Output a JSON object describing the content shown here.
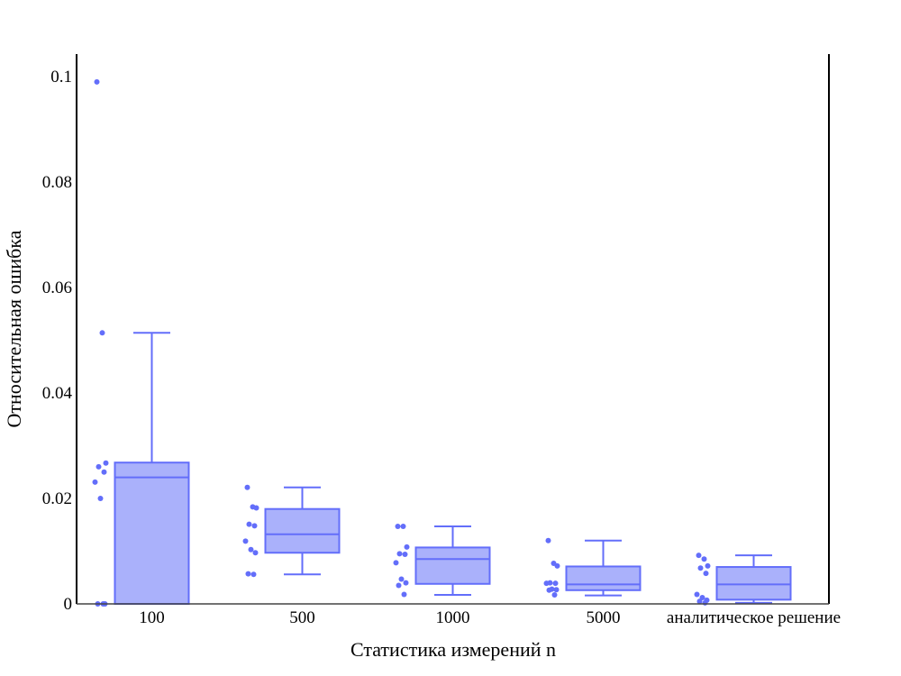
{
  "chart_data": {
    "type": "box",
    "title": "",
    "xlabel": "Статистика измерений n",
    "ylabel": "Относительная ошибка",
    "ylim": [
      0,
      0.1
    ],
    "yticks": [
      {
        "value": 0,
        "label": "0"
      },
      {
        "value": 0.02,
        "label": "0.02"
      },
      {
        "value": 0.04,
        "label": "0.04"
      },
      {
        "value": 0.06,
        "label": "0.06"
      },
      {
        "value": 0.08,
        "label": "0.08"
      },
      {
        "value": 0.1,
        "label": "0.1"
      }
    ],
    "categories": [
      "100",
      "500",
      "1000",
      "5000",
      "аналитическое решение"
    ],
    "color": "#636efa",
    "fill": "#aab1fb",
    "boxes": [
      {
        "category": "100",
        "min": 0,
        "q1": 0,
        "median": 0.024,
        "q3": 0.0268,
        "max": 0.0514,
        "points": [
          0.099,
          0.0514,
          0.0267,
          0.026,
          0.025,
          0.0231,
          0.02,
          0,
          0,
          0
        ]
      },
      {
        "category": "500",
        "min": 0.0056,
        "q1": 0.0097,
        "median": 0.0132,
        "q3": 0.018,
        "max": 0.0221,
        "points": [
          0.0221,
          0.0184,
          0.0182,
          0.0151,
          0.0148,
          0.0119,
          0.0103,
          0.0097,
          0.0057,
          0.0056
        ]
      },
      {
        "category": "1000",
        "min": 0.0017,
        "q1": 0.0038,
        "median": 0.0085,
        "q3": 0.0107,
        "max": 0.0147,
        "points": [
          0.0147,
          0.0147,
          0.0108,
          0.0095,
          0.0094,
          0.0078,
          0.0047,
          0.004,
          0.0035,
          0.0018
        ]
      },
      {
        "category": "5000",
        "min": 0.0016,
        "q1": 0.0026,
        "median": 0.0037,
        "q3": 0.0071,
        "max": 0.012,
        "points": [
          0.012,
          0.0077,
          0.0072,
          0.004,
          0.0039,
          0.0039,
          0.0028,
          0.0027,
          0.0026,
          0.0017
        ]
      },
      {
        "category": "аналитическое решение",
        "min": 0.0002,
        "q1": 0.0008,
        "median": 0.0037,
        "q3": 0.007,
        "max": 0.0092,
        "points": [
          0.0092,
          0.0085,
          0.0072,
          0.0068,
          0.0058,
          0.0018,
          0.0012,
          0.0007,
          0.0005,
          0.0002
        ]
      }
    ]
  }
}
